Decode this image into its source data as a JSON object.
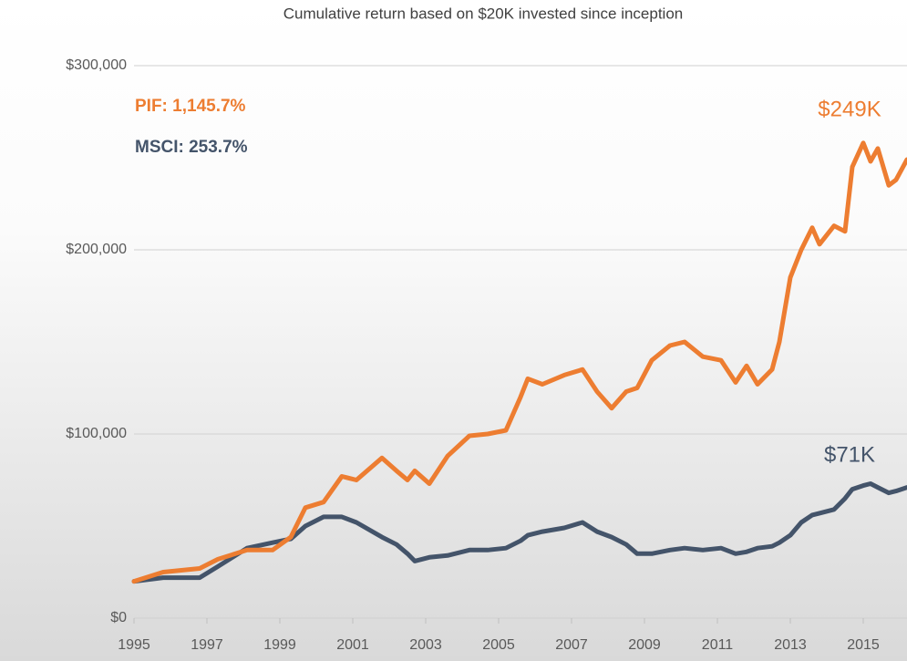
{
  "chart_data": {
    "type": "line",
    "title": "Cumulative return based on $20K invested since inception",
    "annotations": [
      "PIF:  1,145.7%",
      "MSCI:  253.7%",
      "$249K",
      "$71K"
    ],
    "x": [
      1995.0,
      1995.8,
      1996.8,
      1997.3,
      1998.1,
      1998.8,
      1999.3,
      1999.7,
      2000.2,
      2000.7,
      2001.1,
      2001.8,
      2002.2,
      2002.5,
      2002.7,
      2003.1,
      2003.6,
      2004.2,
      2004.7,
      2005.2,
      2005.6,
      2005.8,
      2006.2,
      2006.8,
      2007.3,
      2007.7,
      2008.1,
      2008.5,
      2008.8,
      2009.2,
      2009.7,
      2010.1,
      2010.6,
      2011.1,
      2011.5,
      2011.8,
      2012.1,
      2012.5,
      2012.7,
      2013.0,
      2013.3,
      2013.6,
      2013.8,
      2014.2,
      2014.5,
      2014.7,
      2015.0,
      2015.2,
      2015.4,
      2015.7,
      2015.9,
      2016.2
    ],
    "series": [
      {
        "name": "PIF",
        "color": "#ed7d31",
        "values": [
          20000,
          25000,
          27000,
          32000,
          37000,
          37000,
          44000,
          60000,
          63000,
          77000,
          75000,
          87000,
          80000,
          75000,
          80000,
          73000,
          88000,
          99000,
          100000,
          102000,
          120000,
          130000,
          127000,
          132000,
          135000,
          123000,
          114000,
          123000,
          125000,
          140000,
          148000,
          150000,
          142000,
          140000,
          128000,
          137000,
          127000,
          135000,
          150000,
          185000,
          200000,
          212000,
          203000,
          213000,
          210000,
          245000,
          258000,
          248000,
          255000,
          235000,
          238000,
          249000
        ]
      },
      {
        "name": "MSCI",
        "color": "#44546a",
        "values": [
          20000,
          22000,
          22000,
          28000,
          38000,
          41000,
          43000,
          50000,
          55000,
          55000,
          52000,
          44000,
          40000,
          35000,
          31000,
          33000,
          34000,
          37000,
          37000,
          38000,
          42000,
          45000,
          47000,
          49000,
          52000,
          47000,
          44000,
          40000,
          35000,
          35000,
          37000,
          38000,
          37000,
          38000,
          35000,
          36000,
          38000,
          39000,
          41000,
          45000,
          52000,
          56000,
          57000,
          59000,
          65000,
          70000,
          72000,
          73000,
          71000,
          68000,
          69000,
          71000
        ]
      }
    ],
    "xlim": [
      1995,
      2016.2
    ],
    "xticks": [
      1995,
      1997,
      1999,
      2001,
      2003,
      2005,
      2007,
      2009,
      2011,
      2013,
      2015
    ],
    "ylim": [
      0,
      300000
    ],
    "yticks": [
      {
        "value": 0,
        "label": "$0"
      },
      {
        "value": 100000,
        "label": "$100,000"
      },
      {
        "value": 200000,
        "label": "$200,000"
      },
      {
        "value": 300000,
        "label": "$300,000"
      }
    ],
    "grid": true
  }
}
